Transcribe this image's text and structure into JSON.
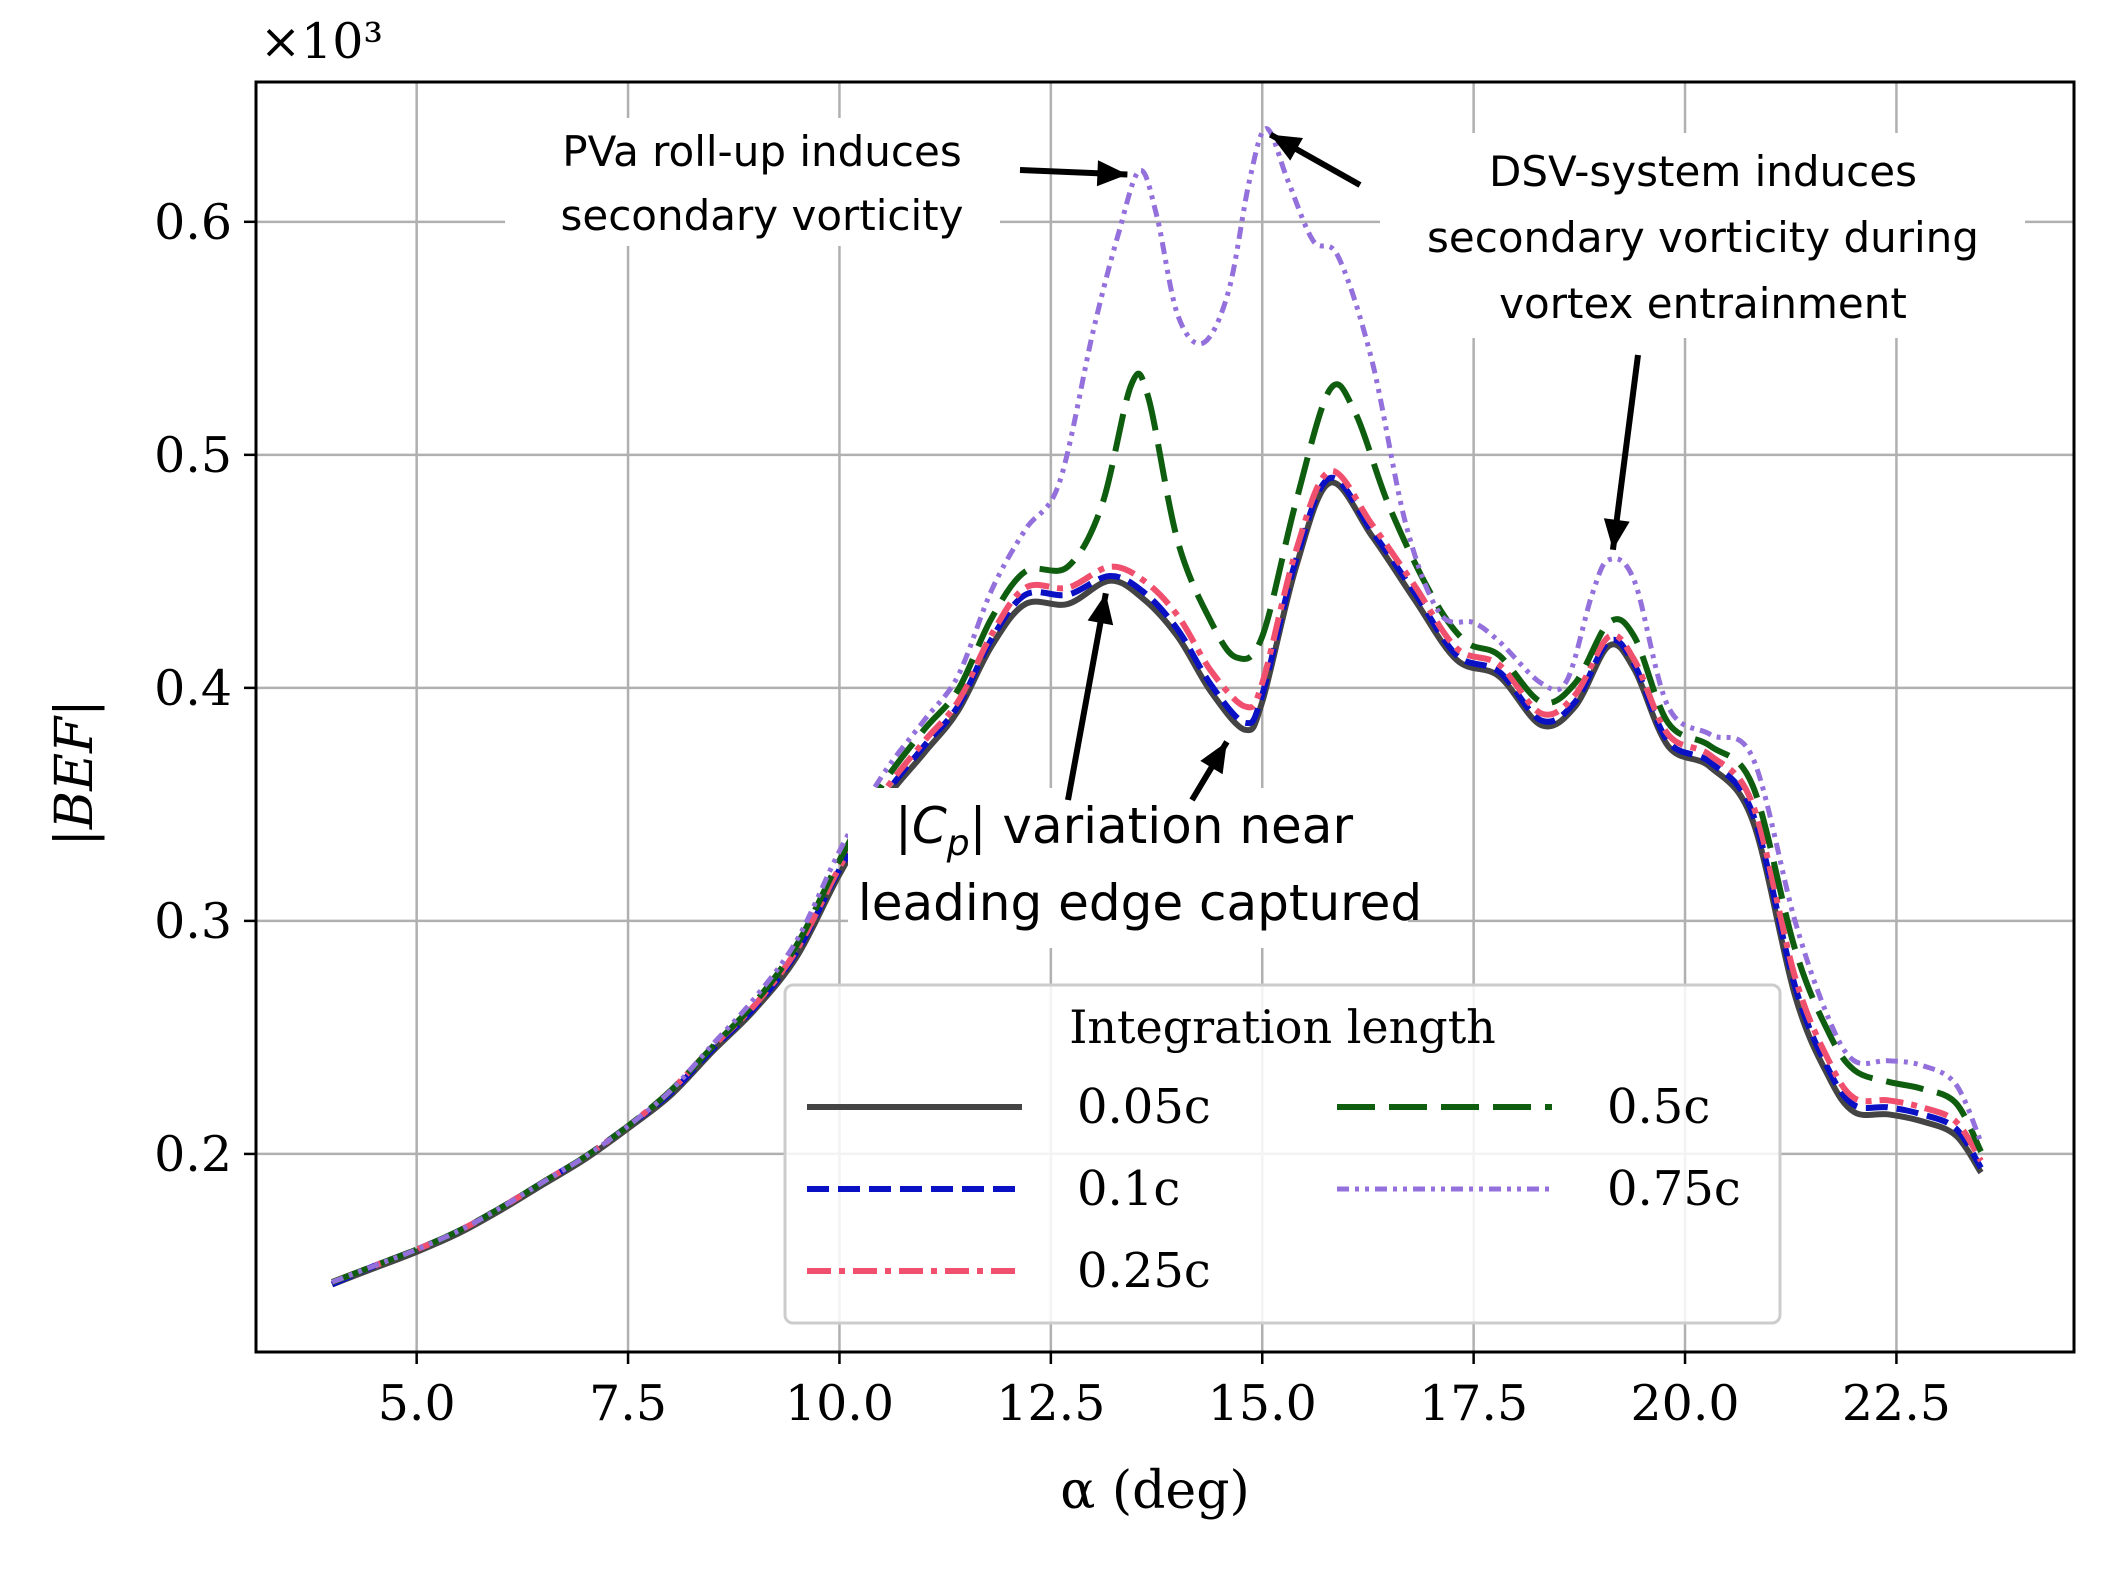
{
  "chart_data": {
    "type": "line",
    "title": "",
    "xlabel": "α (deg)",
    "ylabel": "|BEF|",
    "y_multiplier": "×10³",
    "xlim": [
      3.1,
      24.6
    ],
    "ylim": [
      0.115,
      0.66
    ],
    "xticks": [
      "5.0",
      "7.5",
      "10.0",
      "12.5",
      "15.0",
      "17.5",
      "20.0",
      "22.5"
    ],
    "yticks": [
      "0.2",
      "0.3",
      "0.4",
      "0.5",
      "0.6"
    ],
    "grid": true,
    "legend": {
      "title": "Integration length",
      "position": "lower-center",
      "columns": 2
    },
    "series": [
      {
        "name": "0.05c",
        "color": "#444444",
        "style": "solid",
        "points": [
          [
            4.0,
            0.144
          ],
          [
            4.5,
            0.151
          ],
          [
            5.0,
            0.158
          ],
          [
            5.5,
            0.166
          ],
          [
            6.0,
            0.176
          ],
          [
            6.5,
            0.187
          ],
          [
            7.0,
            0.198
          ],
          [
            7.5,
            0.211
          ],
          [
            8.0,
            0.225
          ],
          [
            8.5,
            0.244
          ],
          [
            9.0,
            0.262
          ],
          [
            9.5,
            0.285
          ],
          [
            10.0,
            0.32
          ],
          [
            10.5,
            0.35
          ],
          [
            11.0,
            0.372
          ],
          [
            11.4,
            0.39
          ],
          [
            11.8,
            0.418
          ],
          [
            12.2,
            0.436
          ],
          [
            12.7,
            0.436
          ],
          [
            13.2,
            0.446
          ],
          [
            13.6,
            0.438
          ],
          [
            14.0,
            0.422
          ],
          [
            14.4,
            0.398
          ],
          [
            14.8,
            0.382
          ],
          [
            15.0,
            0.394
          ],
          [
            15.4,
            0.452
          ],
          [
            15.8,
            0.488
          ],
          [
            16.3,
            0.465
          ],
          [
            16.8,
            0.438
          ],
          [
            17.3,
            0.412
          ],
          [
            17.8,
            0.405
          ],
          [
            18.3,
            0.384
          ],
          [
            18.7,
            0.392
          ],
          [
            19.1,
            0.418
          ],
          [
            19.4,
            0.408
          ],
          [
            19.8,
            0.375
          ],
          [
            20.3,
            0.366
          ],
          [
            20.8,
            0.343
          ],
          [
            21.3,
            0.268
          ],
          [
            21.7,
            0.233
          ],
          [
            22.0,
            0.218
          ],
          [
            22.4,
            0.217
          ],
          [
            22.8,
            0.214
          ],
          [
            23.2,
            0.208
          ],
          [
            23.5,
            0.192
          ]
        ]
      },
      {
        "name": "0.1c",
        "color": "#0a10c4",
        "style": "dashed",
        "points": [
          [
            4.0,
            0.144
          ],
          [
            4.5,
            0.152
          ],
          [
            5.0,
            0.159
          ],
          [
            5.5,
            0.167
          ],
          [
            6.0,
            0.177
          ],
          [
            6.5,
            0.188
          ],
          [
            7.0,
            0.199
          ],
          [
            7.5,
            0.212
          ],
          [
            8.0,
            0.226
          ],
          [
            8.5,
            0.245
          ],
          [
            9.0,
            0.263
          ],
          [
            9.5,
            0.287
          ],
          [
            10.0,
            0.322
          ],
          [
            10.5,
            0.352
          ],
          [
            11.0,
            0.375
          ],
          [
            11.4,
            0.392
          ],
          [
            11.8,
            0.421
          ],
          [
            12.2,
            0.44
          ],
          [
            12.7,
            0.44
          ],
          [
            13.2,
            0.448
          ],
          [
            13.6,
            0.441
          ],
          [
            14.0,
            0.425
          ],
          [
            14.4,
            0.401
          ],
          [
            14.8,
            0.385
          ],
          [
            15.0,
            0.397
          ],
          [
            15.4,
            0.455
          ],
          [
            15.8,
            0.49
          ],
          [
            16.3,
            0.467
          ],
          [
            16.8,
            0.441
          ],
          [
            17.3,
            0.414
          ],
          [
            17.8,
            0.407
          ],
          [
            18.3,
            0.386
          ],
          [
            18.7,
            0.394
          ],
          [
            19.1,
            0.42
          ],
          [
            19.4,
            0.41
          ],
          [
            19.8,
            0.377
          ],
          [
            20.3,
            0.368
          ],
          [
            20.8,
            0.346
          ],
          [
            21.3,
            0.272
          ],
          [
            21.7,
            0.236
          ],
          [
            22.0,
            0.221
          ],
          [
            22.4,
            0.22
          ],
          [
            22.8,
            0.217
          ],
          [
            23.2,
            0.211
          ],
          [
            23.5,
            0.194
          ]
        ]
      },
      {
        "name": "0.25c",
        "color": "#f0506e",
        "style": "dashdot",
        "points": [
          [
            4.0,
            0.145
          ],
          [
            4.5,
            0.152
          ],
          [
            5.0,
            0.159
          ],
          [
            5.5,
            0.167
          ],
          [
            6.0,
            0.177
          ],
          [
            6.5,
            0.188
          ],
          [
            7.0,
            0.199
          ],
          [
            7.5,
            0.212
          ],
          [
            8.0,
            0.227
          ],
          [
            8.5,
            0.246
          ],
          [
            9.0,
            0.264
          ],
          [
            9.5,
            0.288
          ],
          [
            10.0,
            0.323
          ],
          [
            10.5,
            0.354
          ],
          [
            11.0,
            0.377
          ],
          [
            11.4,
            0.394
          ],
          [
            11.8,
            0.423
          ],
          [
            12.2,
            0.443
          ],
          [
            12.7,
            0.443
          ],
          [
            13.2,
            0.452
          ],
          [
            13.6,
            0.446
          ],
          [
            14.0,
            0.431
          ],
          [
            14.4,
            0.407
          ],
          [
            14.8,
            0.392
          ],
          [
            15.0,
            0.402
          ],
          [
            15.4,
            0.459
          ],
          [
            15.8,
            0.493
          ],
          [
            16.3,
            0.47
          ],
          [
            16.8,
            0.444
          ],
          [
            17.3,
            0.417
          ],
          [
            17.8,
            0.41
          ],
          [
            18.3,
            0.389
          ],
          [
            18.7,
            0.397
          ],
          [
            19.1,
            0.422
          ],
          [
            19.4,
            0.412
          ],
          [
            19.8,
            0.38
          ],
          [
            20.3,
            0.371
          ],
          [
            20.8,
            0.35
          ],
          [
            21.3,
            0.276
          ],
          [
            21.7,
            0.24
          ],
          [
            22.0,
            0.224
          ],
          [
            22.4,
            0.223
          ],
          [
            22.8,
            0.22
          ],
          [
            23.2,
            0.214
          ],
          [
            23.5,
            0.197
          ]
        ]
      },
      {
        "name": "0.5c",
        "color": "#0f5e0f",
        "style": "longdash",
        "points": [
          [
            4.0,
            0.145
          ],
          [
            4.5,
            0.152
          ],
          [
            5.0,
            0.159
          ],
          [
            5.5,
            0.167
          ],
          [
            6.0,
            0.177
          ],
          [
            6.5,
            0.188
          ],
          [
            7.0,
            0.199
          ],
          [
            7.5,
            0.212
          ],
          [
            8.0,
            0.227
          ],
          [
            8.5,
            0.246
          ],
          [
            9.0,
            0.265
          ],
          [
            9.5,
            0.29
          ],
          [
            10.0,
            0.326
          ],
          [
            10.5,
            0.358
          ],
          [
            11.0,
            0.382
          ],
          [
            11.4,
            0.399
          ],
          [
            11.8,
            0.43
          ],
          [
            12.2,
            0.45
          ],
          [
            12.7,
            0.452
          ],
          [
            13.1,
            0.478
          ],
          [
            13.45,
            0.53
          ],
          [
            13.65,
            0.525
          ],
          [
            14.0,
            0.463
          ],
          [
            14.4,
            0.428
          ],
          [
            14.7,
            0.413
          ],
          [
            15.0,
            0.422
          ],
          [
            15.4,
            0.48
          ],
          [
            15.8,
            0.528
          ],
          [
            16.1,
            0.518
          ],
          [
            16.5,
            0.478
          ],
          [
            17.0,
            0.44
          ],
          [
            17.4,
            0.42
          ],
          [
            17.8,
            0.414
          ],
          [
            18.3,
            0.394
          ],
          [
            18.7,
            0.402
          ],
          [
            19.1,
            0.428
          ],
          [
            19.4,
            0.422
          ],
          [
            19.8,
            0.385
          ],
          [
            20.3,
            0.375
          ],
          [
            20.8,
            0.358
          ],
          [
            21.3,
            0.288
          ],
          [
            21.7,
            0.252
          ],
          [
            22.0,
            0.236
          ],
          [
            22.4,
            0.231
          ],
          [
            22.8,
            0.228
          ],
          [
            23.2,
            0.222
          ],
          [
            23.5,
            0.201
          ]
        ]
      },
      {
        "name": "0.75c",
        "color": "#9370db",
        "style": "dotdash",
        "points": [
          [
            4.0,
            0.145
          ],
          [
            4.5,
            0.152
          ],
          [
            5.0,
            0.159
          ],
          [
            5.5,
            0.167
          ],
          [
            6.0,
            0.177
          ],
          [
            6.5,
            0.188
          ],
          [
            7.0,
            0.199
          ],
          [
            7.5,
            0.212
          ],
          [
            8.0,
            0.227
          ],
          [
            8.5,
            0.247
          ],
          [
            9.0,
            0.267
          ],
          [
            9.5,
            0.292
          ],
          [
            10.0,
            0.33
          ],
          [
            10.5,
            0.362
          ],
          [
            11.0,
            0.386
          ],
          [
            11.4,
            0.405
          ],
          [
            11.8,
            0.442
          ],
          [
            12.2,
            0.468
          ],
          [
            12.6,
            0.488
          ],
          [
            13.0,
            0.553
          ],
          [
            13.3,
            0.595
          ],
          [
            13.55,
            0.622
          ],
          [
            13.75,
            0.603
          ],
          [
            14.0,
            0.56
          ],
          [
            14.3,
            0.548
          ],
          [
            14.6,
            0.57
          ],
          [
            14.85,
            0.618
          ],
          [
            15.05,
            0.64
          ],
          [
            15.3,
            0.618
          ],
          [
            15.6,
            0.592
          ],
          [
            15.9,
            0.585
          ],
          [
            16.3,
            0.54
          ],
          [
            16.7,
            0.47
          ],
          [
            17.1,
            0.432
          ],
          [
            17.5,
            0.428
          ],
          [
            17.8,
            0.42
          ],
          [
            18.3,
            0.402
          ],
          [
            18.6,
            0.403
          ],
          [
            18.9,
            0.44
          ],
          [
            19.1,
            0.455
          ],
          [
            19.4,
            0.446
          ],
          [
            19.8,
            0.392
          ],
          [
            20.3,
            0.38
          ],
          [
            20.8,
            0.37
          ],
          [
            21.3,
            0.3
          ],
          [
            21.7,
            0.258
          ],
          [
            22.0,
            0.24
          ],
          [
            22.4,
            0.24
          ],
          [
            22.8,
            0.238
          ],
          [
            23.2,
            0.23
          ],
          [
            23.5,
            0.205
          ]
        ]
      }
    ],
    "annotations": [
      {
        "lines": [
          "PVa roll-up induces",
          "secondary vorticity"
        ]
      },
      {
        "lines": [
          "DSV-system induces",
          "secondary vorticity during",
          "vortex entrainment"
        ]
      },
      {
        "prefix": "|C",
        "sub": "p",
        "suffix": "| variation near",
        "line2": "leading edge captured"
      }
    ]
  }
}
